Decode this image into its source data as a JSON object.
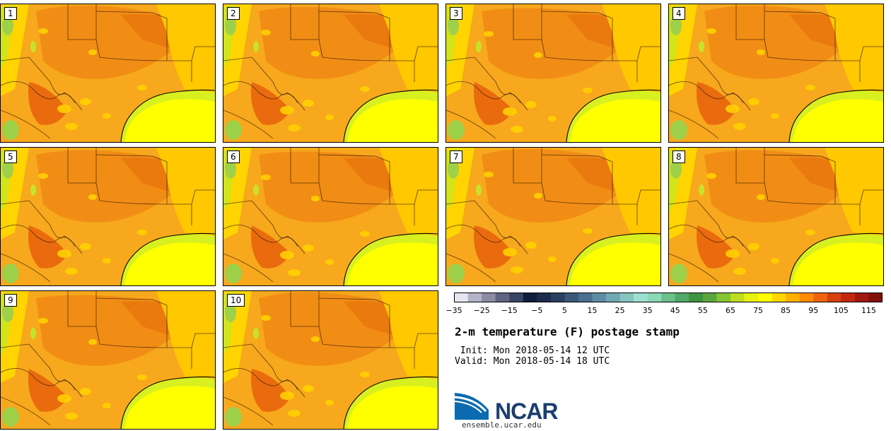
{
  "panels": [
    {
      "label": "1"
    },
    {
      "label": "2"
    },
    {
      "label": "3"
    },
    {
      "label": "4"
    },
    {
      "label": "5"
    },
    {
      "label": "6"
    },
    {
      "label": "7"
    },
    {
      "label": "8"
    },
    {
      "label": "9"
    },
    {
      "label": "10"
    }
  ],
  "colorbar": {
    "colors": [
      "#e6e6f0",
      "#b4b4c8",
      "#8c8ca5",
      "#606480",
      "#3a4464",
      "#101e3c",
      "#1c2c4c",
      "#2a4060",
      "#3a5878",
      "#4a7090",
      "#5e8ca4",
      "#70a8b4",
      "#86c4c0",
      "#9ce0d0",
      "#8ad8b4",
      "#6cc08c",
      "#52a866",
      "#3e9440",
      "#5aa63e",
      "#86c430",
      "#bedc20",
      "#e8f010",
      "#ffff00",
      "#ffd700",
      "#ffb000",
      "#ff8c00",
      "#f06410",
      "#d84010",
      "#c02810",
      "#a01810",
      "#801008"
    ],
    "tick_labels": [
      "−35",
      "−25",
      "−15",
      "−5",
      "5",
      "15",
      "25",
      "35",
      "45",
      "55",
      "65",
      "75",
      "85",
      "95",
      "105",
      "115"
    ]
  },
  "title": "2-m temperature (F) postage stamp",
  "init_line": " Init: Mon 2018-05-14 12 UTC",
  "valid_line": "Valid: Mon 2018-05-14 18 UTC",
  "logo": {
    "text": "NCAR",
    "url": "ensemble.ucar.edu"
  }
}
